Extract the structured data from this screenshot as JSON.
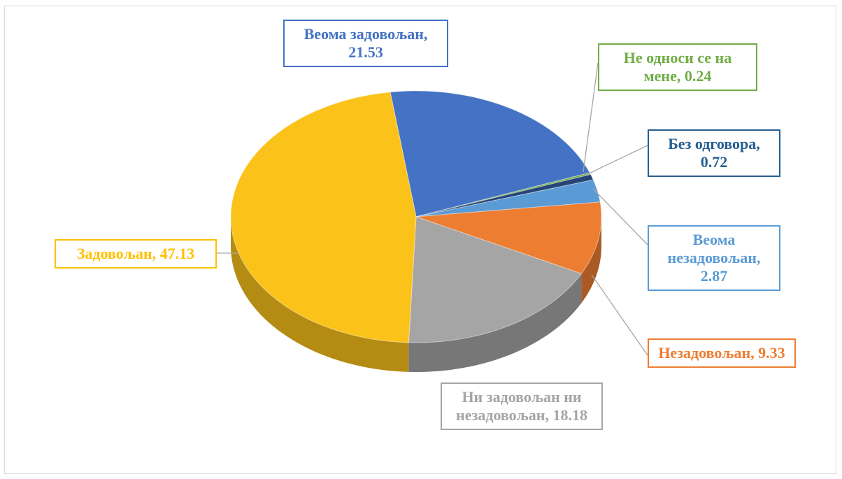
{
  "chart_data": {
    "type": "pie3d",
    "values": [
      21.53,
      0.24,
      0.72,
      2.87,
      9.33,
      18.18,
      47.13
    ],
    "value_labels": [
      "Веома задовољан, 21.53",
      "Не односи се на мене, 0.24",
      "Без одговора, 0.72",
      "Веома незадовољан, 2.87",
      "Незадовољан, 9.33",
      "Ни задовољан ни незадовољан, 18.18",
      "Задовољан, 47.13"
    ],
    "colors": [
      "#4472c4",
      "#70ad47",
      "#264478",
      "#5b9bd5",
      "#ed7d31",
      "#a5a5a5",
      "#fbc21a"
    ],
    "label_colors": [
      "#4472c4",
      "#70ad47",
      "#255e91",
      "#5b9bd5",
      "#ed7d31",
      "#a5a5a5",
      "#ffc000"
    ]
  }
}
